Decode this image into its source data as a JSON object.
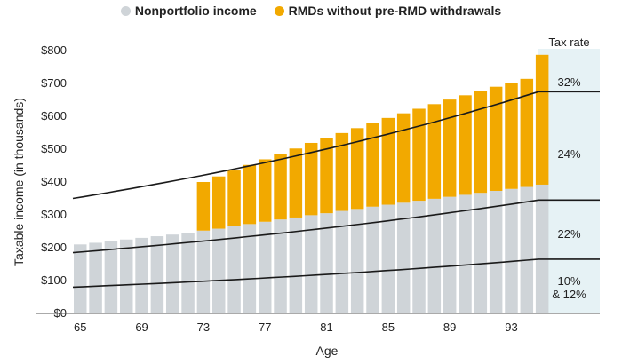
{
  "legend": {
    "nonportfolio": "Nonportfolio income",
    "rmds": "RMDs without pre-RMD withdrawals"
  },
  "colors": {
    "nonportfolio": "#cfd4d8",
    "rmds": "#f2a900",
    "band": "#e6f2f5",
    "line": "#1a1a1a"
  },
  "chart_data": {
    "type": "bar",
    "stacked": true,
    "xlabel": "Age",
    "ylabel": "Taxable income (in thousands)",
    "ylim": [
      0,
      800
    ],
    "y_ticks": [
      "$0",
      "$100",
      "$200",
      "$300",
      "$400",
      "$500",
      "$600",
      "$700",
      "$800"
    ],
    "x_tick_labels": [
      "65",
      "69",
      "73",
      "77",
      "81",
      "85",
      "89",
      "93"
    ],
    "categories": [
      65,
      66,
      67,
      68,
      69,
      70,
      71,
      72,
      73,
      74,
      75,
      76,
      77,
      78,
      79,
      80,
      81,
      82,
      83,
      84,
      85,
      86,
      87,
      88,
      89,
      90,
      91,
      92,
      93,
      94,
      95
    ],
    "series": [
      {
        "name": "Nonportfolio income",
        "values": [
          210,
          215,
          220,
          225,
          230,
          235,
          240,
          245,
          252,
          258,
          265,
          272,
          279,
          286,
          292,
          299,
          305,
          312,
          318,
          325,
          331,
          337,
          343,
          349,
          355,
          361,
          367,
          373,
          379,
          385,
          392
        ]
      },
      {
        "name": "RMDs without pre-RMD withdrawals",
        "values": [
          0,
          0,
          0,
          0,
          0,
          0,
          0,
          0,
          148,
          159,
          170,
          180,
          190,
          200,
          210,
          220,
          228,
          237,
          246,
          255,
          264,
          272,
          280,
          288,
          296,
          303,
          311,
          317,
          323,
          329,
          395
        ]
      }
    ],
    "bracket_lines": [
      {
        "name": "10%/12% top",
        "start": 80,
        "end": 165
      },
      {
        "name": "22% top",
        "start": 185,
        "end": 345
      },
      {
        "name": "24% top",
        "start": 350,
        "end": 675
      }
    ],
    "tax_rate_title": "Tax rate",
    "tax_rate_labels": [
      "32%",
      "24%",
      "22%",
      "10%",
      "& 12%"
    ]
  }
}
